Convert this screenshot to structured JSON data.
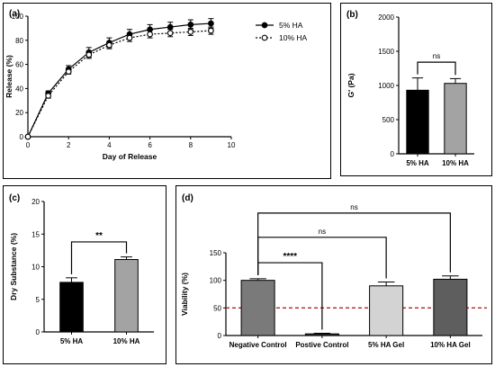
{
  "chart_data": [
    {
      "id": "a",
      "panel_label": "(a)",
      "type": "line",
      "xlabel": "Day of Release",
      "ylabel": "Release (%)",
      "xlim": [
        0,
        10
      ],
      "ylim": [
        0,
        100
      ],
      "xticks": [
        0,
        2,
        4,
        6,
        8,
        10
      ],
      "yticks": [
        0,
        20,
        40,
        60,
        80,
        100
      ],
      "legend": "top-right",
      "series": [
        {
          "name": "5% HA",
          "style": "solid-filled",
          "x": [
            0,
            1,
            2,
            3,
            4,
            5,
            6,
            7,
            8,
            9
          ],
          "y": [
            0,
            36,
            56,
            70,
            78,
            85,
            89,
            91,
            93,
            94
          ],
          "err": [
            0,
            2,
            3,
            4,
            4,
            4,
            4,
            4,
            4,
            4
          ]
        },
        {
          "name": "10% HA",
          "style": "dotted-open",
          "x": [
            0,
            1,
            2,
            3,
            4,
            5,
            6,
            7,
            8,
            9
          ],
          "y": [
            0,
            34,
            54,
            68,
            76,
            82,
            85,
            86,
            87,
            88
          ],
          "err": [
            0,
            2,
            2,
            3,
            3,
            3,
            3,
            3,
            3,
            3
          ]
        }
      ]
    },
    {
      "id": "b",
      "panel_label": "(b)",
      "type": "bar",
      "ylabel": "G' (Pa)",
      "ylim": [
        0,
        2000
      ],
      "yticks": [
        0,
        500,
        1000,
        1500,
        2000
      ],
      "categories": [
        "5% HA",
        "10% HA"
      ],
      "values": [
        930,
        1030
      ],
      "err": [
        180,
        70
      ],
      "colors": [
        "#000000",
        "#a3a3a3"
      ],
      "annotations": [
        {
          "from": 0,
          "to": 1,
          "label": "ns",
          "y": 1340
        }
      ]
    },
    {
      "id": "c",
      "panel_label": "(c)",
      "type": "bar",
      "ylabel": "Dry Substance (%)",
      "ylim": [
        0,
        20
      ],
      "yticks": [
        0,
        5,
        10,
        15,
        20
      ],
      "categories": [
        "5% HA",
        "10% HA"
      ],
      "values": [
        7.6,
        11.1
      ],
      "err": [
        0.7,
        0.4
      ],
      "colors": [
        "#000000",
        "#a3a3a3"
      ],
      "annotations": [
        {
          "from": 0,
          "to": 1,
          "label": "**",
          "y": 13.8
        }
      ]
    },
    {
      "id": "d",
      "panel_label": "(d)",
      "type": "bar",
      "ylabel": "Viability (%)",
      "ylim": [
        0,
        150
      ],
      "yticks": [
        0,
        50,
        100,
        150
      ],
      "categories": [
        "Negative Control",
        "Postive Control",
        "5% HA Gel",
        "10% HA Gel"
      ],
      "values": [
        100,
        3,
        90,
        102
      ],
      "err": [
        3,
        1,
        7,
        6
      ],
      "colors": [
        "#7a7a7a",
        "#3c3c3c",
        "#d3d3d3",
        "#5e5e5e"
      ],
      "reference_line": {
        "y": 50,
        "color": "#b22222"
      },
      "annotations": [
        {
          "from": 0,
          "to": 1,
          "label": "****",
          "y": 132
        },
        {
          "from": 0,
          "to": 2,
          "label": "ns",
          "y": 178
        },
        {
          "from": 0,
          "to": 3,
          "label": "ns",
          "y": 222
        }
      ]
    }
  ]
}
